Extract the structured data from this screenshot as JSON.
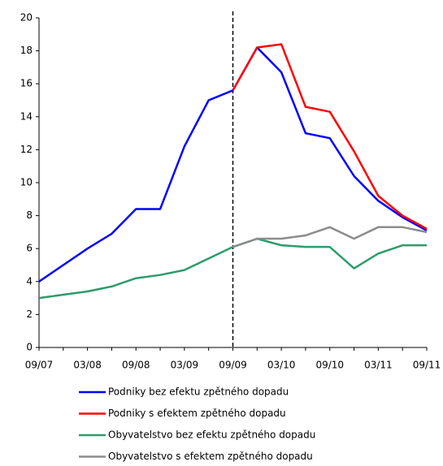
{
  "chart_data": {
    "type": "line",
    "categories": [
      "09/07",
      null,
      "03/08",
      null,
      "09/08",
      null,
      "03/09",
      null,
      "09/09",
      null,
      "03/10",
      null,
      "09/10",
      null,
      "03/11",
      null,
      "09/11"
    ],
    "series": [
      {
        "name": "Podniky bez efektu zpětného dopadu",
        "color": "#0000ff",
        "values": [
          4.0,
          5.0,
          6.0,
          6.9,
          8.4,
          8.4,
          12.2,
          15.0,
          15.6,
          18.2,
          16.7,
          13.0,
          12.7,
          10.4,
          8.9,
          7.9,
          7.1
        ]
      },
      {
        "name": "Podniky s efektem zpětného dopadu",
        "color": "#ff0000",
        "values": [
          null,
          null,
          null,
          null,
          null,
          null,
          null,
          null,
          15.6,
          18.2,
          18.4,
          14.6,
          14.3,
          11.9,
          9.2,
          8.0,
          7.2
        ]
      },
      {
        "name": "Obyvatelstvo bez efektu zpětného dopadu",
        "color": "#2e9b6b",
        "values": [
          3.0,
          3.2,
          3.4,
          3.7,
          4.2,
          4.4,
          4.7,
          5.4,
          6.1,
          6.6,
          6.2,
          6.1,
          6.1,
          4.8,
          5.7,
          6.2,
          6.2
        ]
      },
      {
        "name": "Obyvatelstvo s efektem zpětného dopadu",
        "color": "#8c8c8c",
        "values": [
          null,
          null,
          null,
          null,
          null,
          null,
          null,
          null,
          6.1,
          6.6,
          6.6,
          6.8,
          7.3,
          6.6,
          7.3,
          7.3,
          7.0
        ]
      }
    ],
    "ylim": [
      0,
      20
    ],
    "yticks": [
      0,
      2,
      4,
      6,
      8,
      10,
      12,
      14,
      16,
      18,
      20
    ],
    "grid": false
  }
}
